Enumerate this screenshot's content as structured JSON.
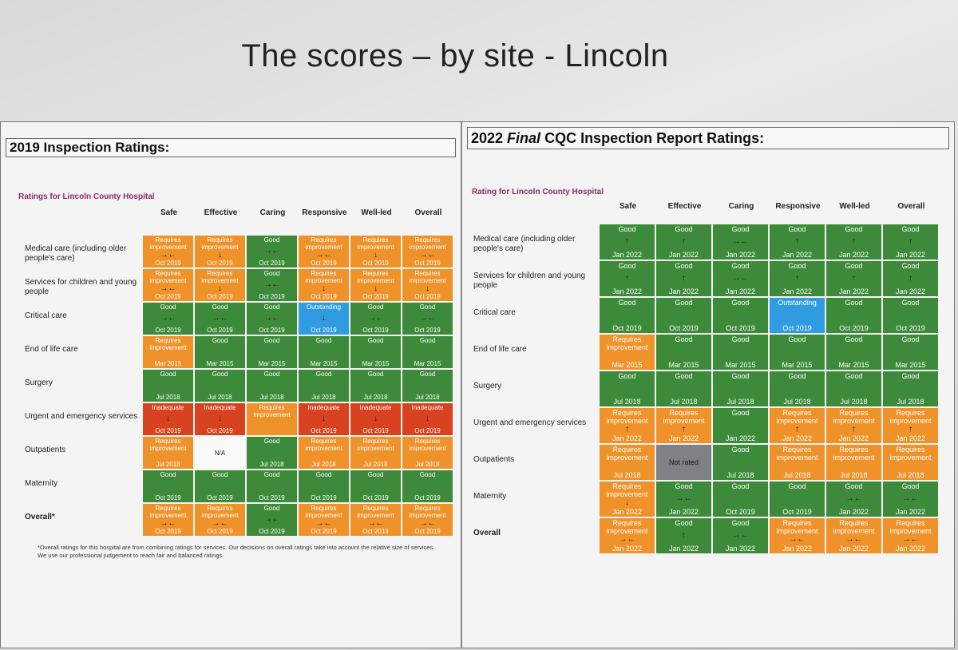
{
  "slide_title": "The scores – by site - Lincoln",
  "left": {
    "heading": "2019 Inspection Ratings:",
    "hospital_title": "Ratings for Lincoln County Hospital",
    "columns": [
      "Safe",
      "Effective",
      "Caring",
      "Responsive",
      "Well-led",
      "Overall"
    ],
    "rows": [
      "Medical care (including older people's care)",
      "Services for children and young people",
      "Critical care",
      "End of life care",
      "Surgery",
      "Urgent and emergency services",
      "Outpatients",
      "Maternity",
      "Overall*"
    ],
    "cells": [
      [
        [
          "Requires improvement",
          "→←",
          "Oct 2019",
          "ri"
        ],
        [
          "Requires improvement",
          "↓",
          "Oct 2019",
          "ri"
        ],
        [
          "Good",
          "→←",
          "Oct 2019",
          "good"
        ],
        [
          "Requires improvement",
          "→←",
          "Oct 2019",
          "ri"
        ],
        [
          "Requires improvement",
          "↓",
          "Oct 2019",
          "ri"
        ],
        [
          "Requires improvement",
          "→←",
          "Oct 2019",
          "ri"
        ]
      ],
      [
        [
          "Requires improvement",
          "→←",
          "Oct 2019",
          "ri"
        ],
        [
          "Requires improvement",
          "↓",
          "Oct 2019",
          "ri"
        ],
        [
          "Good",
          "→←",
          "Oct 2019",
          "good"
        ],
        [
          "Requires improvement",
          "↓",
          "Oct 2019",
          "ri"
        ],
        [
          "Requires improvement",
          "↓",
          "Oct 2019",
          "ri"
        ],
        [
          "Requires improvement",
          "↓",
          "Oct 2019",
          "ri"
        ]
      ],
      [
        [
          "Good",
          "→←",
          "Oct 2019",
          "good"
        ],
        [
          "Good",
          "→←",
          "Oct 2019",
          "good"
        ],
        [
          "Good",
          "→←",
          "Oct 2019",
          "good"
        ],
        [
          "Outstanding",
          "↓",
          "Oct 2019",
          "out"
        ],
        [
          "Good",
          "→←",
          "Oct 2019",
          "good"
        ],
        [
          "Good",
          "→←",
          "Oct 2019",
          "good"
        ]
      ],
      [
        [
          "Requires improvement",
          "",
          "Mar 2015",
          "ri"
        ],
        [
          "Good",
          "",
          "Mar 2015",
          "good"
        ],
        [
          "Good",
          "",
          "Mar 2015",
          "good"
        ],
        [
          "Good",
          "",
          "Mar 2015",
          "good"
        ],
        [
          "Good",
          "",
          "Mar 2015",
          "good"
        ],
        [
          "Good",
          "",
          "Mar 2015",
          "good"
        ]
      ],
      [
        [
          "Good",
          "",
          "Jul 2018",
          "good"
        ],
        [
          "Good",
          "",
          "Jul 2018",
          "good"
        ],
        [
          "Good",
          "",
          "Jul 2018",
          "good"
        ],
        [
          "Good",
          "",
          "Jul 2018",
          "good"
        ],
        [
          "Good",
          "",
          "Jul 2018",
          "good"
        ],
        [
          "Good",
          "",
          "Jul 2018",
          "good"
        ]
      ],
      [
        [
          "Inadequate",
          "↓",
          "Oct 2019",
          "inad"
        ],
        [
          "Inadequate",
          "↓",
          "Oct 2019",
          "inad"
        ],
        [
          "Requires improvement",
          "",
          "",
          "ri"
        ],
        [
          "Inadequate",
          "↓",
          "Oct 2019",
          "inad"
        ],
        [
          "Inadequate",
          "↓",
          "Oct 2019",
          "inad"
        ],
        [
          "Inadequate",
          "↓",
          "Oct 2019",
          "inad"
        ]
      ],
      [
        [
          "Requires improvement",
          "",
          "Jul 2018",
          "ri"
        ],
        [
          "N/A",
          "",
          "",
          "na"
        ],
        [
          "Good",
          "",
          "Jul 2018",
          "good"
        ],
        [
          "Requires improvement",
          "",
          "Jul 2018",
          "ri"
        ],
        [
          "Requires improvement",
          "",
          "Jul 2018",
          "ri"
        ],
        [
          "Requires improvement",
          "",
          "Jul 2018",
          "ri"
        ]
      ],
      [
        [
          "Good",
          "",
          "Oct 2019",
          "good"
        ],
        [
          "Good",
          "",
          "Oct 2019",
          "good"
        ],
        [
          "Good",
          "",
          "Oct 2019",
          "good"
        ],
        [
          "Good",
          "",
          "Oct 2019",
          "good"
        ],
        [
          "Good",
          "",
          "Oct 2019",
          "good"
        ],
        [
          "Good",
          "",
          "Oct 2019",
          "good"
        ]
      ],
      [
        [
          "Requires improvement",
          "→←",
          "Oct 2019",
          "ri"
        ],
        [
          "Requires improvement",
          "→←",
          "Oct 2019",
          "ri"
        ],
        [
          "Good",
          "→←",
          "Oct 2019",
          "good"
        ],
        [
          "Requires improvement",
          "→←",
          "Oct 2019",
          "ri"
        ],
        [
          "Requires improvement",
          "→←",
          "Oct 2019",
          "ri"
        ],
        [
          "Requires improvement",
          "→←",
          "Oct 2019",
          "ri"
        ]
      ]
    ],
    "footnote": "*Overall ratings for this hospital are from combining ratings for services. Our decisions on overall ratings take into account the relative size of services. We use our professional judgement to reach fair and balanced ratings."
  },
  "right": {
    "heading_prefix": "2022 ",
    "heading_italic": "Final",
    "heading_suffix": " CQC Inspection Report Ratings:",
    "hospital_title": "Rating for Lincoln County Hospital",
    "columns": [
      "Safe",
      "Effective",
      "Caring",
      "Responsive",
      "Well-led",
      "Overall"
    ],
    "rows": [
      "Medical care (including older people's care)",
      "Services for children and young people",
      "Critical care",
      "End of life care",
      "Surgery",
      "Urgent and emergency services",
      "Outpatients",
      "Maternity",
      "Overall"
    ],
    "cells": [
      [
        [
          "Good",
          "↑",
          "Jan 2022",
          "good"
        ],
        [
          "Good",
          "↑",
          "Jan 2022",
          "good"
        ],
        [
          "Good",
          "→←",
          "Jan 2022",
          "good"
        ],
        [
          "Good",
          "↑",
          "Jan 2022",
          "good"
        ],
        [
          "Good",
          "↑",
          "Jan 2022",
          "good"
        ],
        [
          "Good",
          "↑",
          "Jan 2022",
          "good"
        ]
      ],
      [
        [
          "Good",
          "↑",
          "Jan 2022",
          "good"
        ],
        [
          "Good",
          "↑",
          "Jan 2022",
          "good"
        ],
        [
          "Good",
          "→←",
          "Jan 2022",
          "good"
        ],
        [
          "Good",
          "↑",
          "Jan 2022",
          "good"
        ],
        [
          "Good",
          "↑",
          "Jan 2022",
          "good"
        ],
        [
          "Good",
          "↑",
          "Jan 2022",
          "good"
        ]
      ],
      [
        [
          "Good",
          "",
          "Oct 2019",
          "good"
        ],
        [
          "Good",
          "",
          "Oct 2019",
          "good"
        ],
        [
          "Good",
          "",
          "Oct 2019",
          "good"
        ],
        [
          "Outstanding",
          "",
          "Oct 2019",
          "out"
        ],
        [
          "Good",
          "",
          "Oct 2019",
          "good"
        ],
        [
          "Good",
          "",
          "Oct 2019",
          "good"
        ]
      ],
      [
        [
          "Requires improvement",
          "",
          "Mar 2015",
          "ri"
        ],
        [
          "Good",
          "",
          "Mar 2015",
          "good"
        ],
        [
          "Good",
          "",
          "Mar 2015",
          "good"
        ],
        [
          "Good",
          "",
          "Mar 2015",
          "good"
        ],
        [
          "Good",
          "",
          "Mar 2015",
          "good"
        ],
        [
          "Good",
          "",
          "Mar 2015",
          "good"
        ]
      ],
      [
        [
          "Good",
          "",
          "Jul 2018",
          "good"
        ],
        [
          "Good",
          "",
          "Jul 2018",
          "good"
        ],
        [
          "Good",
          "",
          "Jul 2018",
          "good"
        ],
        [
          "Good",
          "",
          "Jul 2018",
          "good"
        ],
        [
          "Good",
          "",
          "Jul 2018",
          "good"
        ],
        [
          "Good",
          "",
          "Jul 2018",
          "good"
        ]
      ],
      [
        [
          "Requires improvement",
          "↑",
          "Jan 2022",
          "ri"
        ],
        [
          "Requires improvement",
          "↑",
          "Jan 2022",
          "ri"
        ],
        [
          "Good",
          "",
          "Jan 2022",
          "good"
        ],
        [
          "Requires improvement",
          "↑",
          "Jan 2022",
          "ri"
        ],
        [
          "Requires improvement",
          "↑",
          "Jan 2022",
          "ri"
        ],
        [
          "Requires improvement",
          "↑",
          "Jan 2022",
          "ri"
        ]
      ],
      [
        [
          "Requires improvement",
          "",
          "Jul 2018",
          "ri"
        ],
        [
          "Not rated",
          "",
          "",
          "nr"
        ],
        [
          "Good",
          "",
          "Jul 2018",
          "good"
        ],
        [
          "Requires improvement",
          "",
          "Jul 2018",
          "ri"
        ],
        [
          "Requires improvement",
          "",
          "Jul 2018",
          "ri"
        ],
        [
          "Requires improvement",
          "",
          "Jul 2018",
          "ri"
        ]
      ],
      [
        [
          "Requires improvement",
          "↓",
          "Jan 2022",
          "ri"
        ],
        [
          "Good",
          "→←",
          "Jan 2022",
          "good"
        ],
        [
          "Good",
          "",
          "Oct 2019",
          "good"
        ],
        [
          "Good",
          "",
          "Oct 2019",
          "good"
        ],
        [
          "Good",
          "→←",
          "Jan 2022",
          "good"
        ],
        [
          "Good",
          "→←",
          "Jan 2022",
          "good"
        ]
      ],
      [
        [
          "Requires improvement",
          "→←",
          "Jan 2022",
          "ri"
        ],
        [
          "Good",
          "↑",
          "Jan 2022",
          "good"
        ],
        [
          "Good",
          "→←",
          "Jan 2022",
          "good"
        ],
        [
          "Requires improvement",
          "→←",
          "Jan 2022",
          "ri"
        ],
        [
          "Requires improvement",
          "→←",
          "Jan 2022",
          "ri"
        ],
        [
          "Requires improvement",
          "→←",
          "Jan 2022",
          "ri"
        ]
      ]
    ]
  }
}
